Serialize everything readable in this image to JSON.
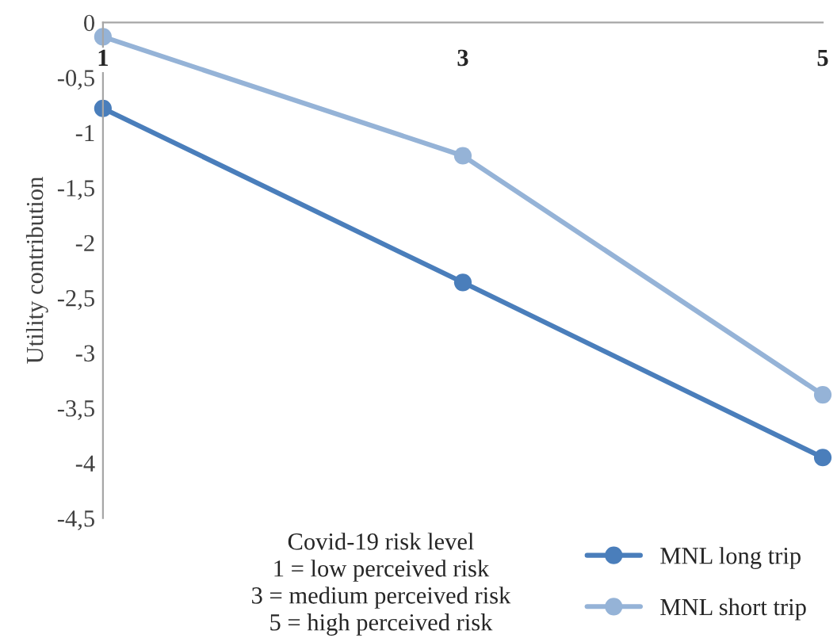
{
  "chart_data": {
    "type": "line",
    "ylabel": "Utility contribution",
    "x": [
      1,
      3,
      5
    ],
    "xlim": [
      1,
      5
    ],
    "xticks": [
      1,
      3,
      5
    ],
    "ylim": [
      -4.5,
      0
    ],
    "yticks": [
      0,
      {
        "value": -0.5,
        "label": "-0,5"
      },
      -1,
      {
        "value": -1.5,
        "label": "-1,5"
      },
      -2,
      {
        "value": -2.5,
        "label": "-2,5"
      },
      -3,
      {
        "value": -3.5,
        "label": "-3,5"
      },
      -4,
      {
        "value": -4.5,
        "label": "-4,5"
      }
    ],
    "series": [
      {
        "name": "MNL long trip",
        "color": "#4a7ebb",
        "values": [
          -0.78,
          -2.36,
          -3.95
        ]
      },
      {
        "name": "MNL short trip",
        "color": "#95b3d7",
        "values": [
          -0.13,
          -1.21,
          -3.38
        ]
      }
    ],
    "marker": "circle",
    "line_style": "solid",
    "grid": false,
    "legend": "bottom right",
    "annotations": [
      "Covid-19 risk level",
      "1 = low perceived risk",
      "3 = medium perceived risk",
      "5 = high perceived risk"
    ]
  }
}
